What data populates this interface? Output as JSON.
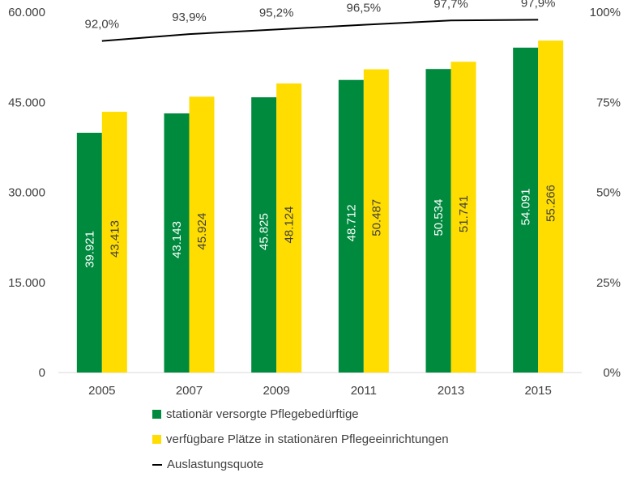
{
  "chart_data": {
    "type": "bar",
    "categories": [
      "2005",
      "2007",
      "2009",
      "2011",
      "2013",
      "2015"
    ],
    "series": [
      {
        "name": "stationär versorgte Pflegebedürftige",
        "values": [
          39921,
          43143,
          45825,
          48712,
          50534,
          54091
        ],
        "labels": [
          "39.921",
          "43.143",
          "45.825",
          "48.712",
          "50.534",
          "54.091"
        ],
        "color": "#008A3E",
        "label_color": "#FFFFFF"
      },
      {
        "name": "verfügbare Plätze in stationären Pflegeeinrichtungen",
        "values": [
          43413,
          45924,
          48124,
          50487,
          51741,
          55266
        ],
        "labels": [
          "43.413",
          "45.924",
          "48.124",
          "50.487",
          "51.741",
          "55.266"
        ],
        "color": "#FFDD00",
        "label_color": "#404040"
      }
    ],
    "line_series": {
      "name": "Auslastungsquote",
      "values": [
        92.0,
        93.9,
        95.2,
        96.5,
        97.7,
        97.9
      ],
      "labels": [
        "92,0%",
        "93,9%",
        "95,2%",
        "96,5%",
        "97,7%",
        "97,9%"
      ],
      "color": "#000000",
      "axis": "right"
    },
    "y_left": {
      "min": 0,
      "max": 60000,
      "ticks": [
        "0",
        "15.000",
        "30.000",
        "45.000",
        "60.000"
      ]
    },
    "y_right": {
      "min": 0,
      "max": 100,
      "ticks": [
        "0%",
        "25%",
        "50%",
        "75%",
        "100%"
      ]
    },
    "title": "",
    "xlabel": "",
    "ylabel": "",
    "grid": false,
    "legend_position": "bottom"
  }
}
